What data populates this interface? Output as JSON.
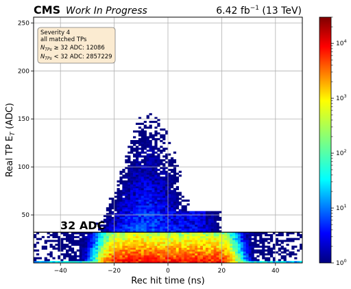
{
  "header": {
    "experiment": "CMS",
    "status": "Work In Progress",
    "lumi": "6.42 fb",
    "lumi_exp": "−1",
    "energy": " (13 TeV)"
  },
  "chart_data": {
    "type": "heatmap",
    "xlabel": "Rec hit time (ns)",
    "ylabel_main": "Real TP E",
    "ylabel_sub": "T",
    "ylabel_unit": " (ADC)",
    "xlim": [
      -50,
      50
    ],
    "ylim": [
      0,
      256
    ],
    "x_ticks": [
      -40,
      -20,
      0,
      20,
      40
    ],
    "y_ticks": [
      50,
      100,
      150,
      200,
      250
    ],
    "grid": true,
    "colorbar": {
      "scale": "log",
      "range": [
        1,
        30000
      ],
      "ticks": [
        {
          "value": 1,
          "base": "10",
          "exp": "0"
        },
        {
          "value": 10,
          "base": "10",
          "exp": "1"
        },
        {
          "value": 100,
          "base": "10",
          "exp": "2"
        },
        {
          "value": 1000,
          "base": "10",
          "exp": "3"
        },
        {
          "value": 10000,
          "base": "10",
          "exp": "4"
        }
      ],
      "colormap": "jet"
    },
    "threshold": {
      "y": 32,
      "label": "32 ADC"
    },
    "legend_box": {
      "placement": "top-left",
      "line1": "Severity 4",
      "line2": "all matched TPs",
      "line3_prefix": "N",
      "line3_sub": "TPs",
      "line3_suffix": " ≥ 32 ADC: 12086",
      "line4_prefix": "N",
      "line4_sub": "TPs",
      "line4_suffix": " < 32 ADC: 2857229"
    }
  }
}
